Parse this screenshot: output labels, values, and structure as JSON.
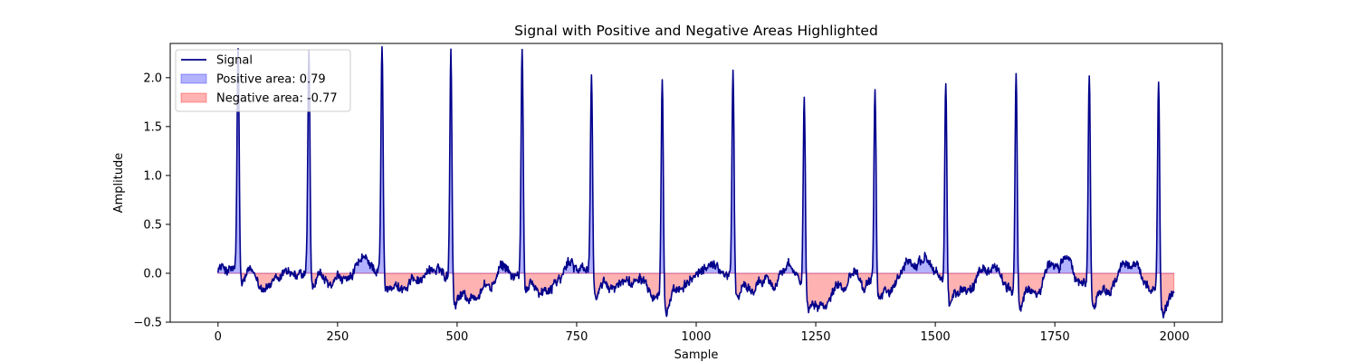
{
  "chart_data": {
    "type": "line",
    "title": "Signal with Positive and Negative Areas Highlighted",
    "xlabel": "Sample",
    "ylabel": "Amplitude",
    "xlim": [
      -100,
      2100
    ],
    "ylim": [
      -0.5,
      2.35
    ],
    "xticks": [
      0,
      250,
      500,
      750,
      1000,
      1250,
      1500,
      1750,
      2000
    ],
    "yticks": [
      -0.5,
      0.0,
      0.5,
      1.0,
      1.5,
      2.0
    ],
    "xtick_labels": [
      "0",
      "250",
      "500",
      "750",
      "1000",
      "1250",
      "1500",
      "1750",
      "2000"
    ],
    "ytick_labels": [
      "−0.5",
      "0.0",
      "0.5",
      "1.0",
      "1.5",
      "2.0"
    ],
    "grid": false,
    "legend": {
      "position": "top-left",
      "entries": [
        {
          "label": "Signal",
          "kind": "line",
          "color": "#00008b"
        },
        {
          "label": "Positive area: 0.79",
          "kind": "patch",
          "color": "#0000ff"
        },
        {
          "label": "Negative area: -0.77",
          "kind": "patch",
          "color": "#ff0000"
        }
      ]
    },
    "series": [
      {
        "name": "Signal",
        "color": "#00008b",
        "baseline": -0.1,
        "samples": 2000,
        "peaks": [
          {
            "x": 42,
            "y": 2.08
          },
          {
            "x": 190,
            "y": 2.14
          },
          {
            "x": 343,
            "y": 2.19
          },
          {
            "x": 487,
            "y": 2.26
          },
          {
            "x": 636,
            "y": 2.2
          },
          {
            "x": 781,
            "y": 1.97
          },
          {
            "x": 929,
            "y": 2.08
          },
          {
            "x": 1077,
            "y": 2.02
          },
          {
            "x": 1226,
            "y": 1.84
          },
          {
            "x": 1374,
            "y": 1.8
          },
          {
            "x": 1522,
            "y": 1.94
          },
          {
            "x": 1669,
            "y": 2.11
          },
          {
            "x": 1822,
            "y": 2.04
          },
          {
            "x": 1967,
            "y": 2.02
          }
        ]
      }
    ],
    "fill_between": [
      {
        "name": "Positive area",
        "value": 0.79,
        "color": "#0000ff",
        "alpha": 0.3,
        "where": "signal > 0"
      },
      {
        "name": "Negative area",
        "value": -0.77,
        "color": "#ff0000",
        "alpha": 0.3,
        "where": "signal < 0"
      }
    ]
  }
}
